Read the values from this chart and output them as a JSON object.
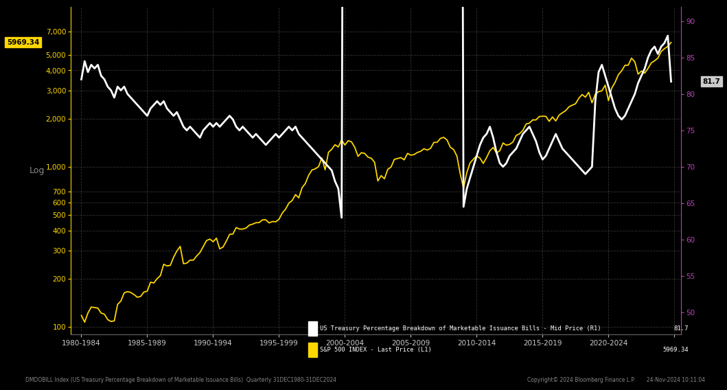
{
  "background_color": "#000000",
  "plot_bg_color": "#000000",
  "grid_color": "#555555",
  "left_axis_color": "#FFD700",
  "right_axis_color": "#BB44BB",
  "white_line_color": "#FFFFFF",
  "gold_line_color": "#FFD700",
  "left_yticks": [
    100,
    200,
    300,
    400,
    500,
    600,
    700,
    1000,
    2000,
    3000,
    4000,
    5000,
    7000
  ],
  "right_yticks": [
    50,
    55,
    60,
    65,
    70,
    75,
    80,
    85,
    90
  ],
  "left_ylim": [
    90,
    10000
  ],
  "right_ylim": [
    47,
    92
  ],
  "legend_label_white": "US Treasury Percentage Breakdown of Marketable Issuance Bills - Mid Price (R1)",
  "legend_label_gold": "S&P 500 INDEX - Last Price (L1)",
  "legend_value_white": "81.7",
  "legend_value_gold": "5969.34",
  "last_value_label_white": "81.7",
  "last_value_label_gold": "5969.34",
  "footer_left": "DMDOBILL Index (US Treasury Percentage Breakdown of Marketable Issuance Bills)  Quarterly 31DEC1980-31DEC2024",
  "footer_right": "Copyright© 2024 Bloomberg Finance L.P.       24-Nov-2024 10:11:04",
  "ylabel_left": "Log",
  "sp500_data": [
    [
      1980.0,
      118
    ],
    [
      1980.25,
      107
    ],
    [
      1980.5,
      122
    ],
    [
      1980.75,
      133
    ],
    [
      1981.0,
      132
    ],
    [
      1981.25,
      131
    ],
    [
      1981.5,
      122
    ],
    [
      1981.75,
      120
    ],
    [
      1982.0,
      111
    ],
    [
      1982.25,
      108
    ],
    [
      1982.5,
      109
    ],
    [
      1982.75,
      138
    ],
    [
      1983.0,
      145
    ],
    [
      1983.25,
      163
    ],
    [
      1983.5,
      166
    ],
    [
      1983.75,
      164
    ],
    [
      1984.0,
      159
    ],
    [
      1984.25,
      153
    ],
    [
      1984.5,
      155
    ],
    [
      1984.75,
      165
    ],
    [
      1985.0,
      167
    ],
    [
      1985.25,
      190
    ],
    [
      1985.5,
      188
    ],
    [
      1985.75,
      200
    ],
    [
      1986.0,
      209
    ],
    [
      1986.25,
      246
    ],
    [
      1986.5,
      240
    ],
    [
      1986.75,
      242
    ],
    [
      1987.0,
      272
    ],
    [
      1987.25,
      298
    ],
    [
      1987.5,
      318
    ],
    [
      1987.75,
      248
    ],
    [
      1988.0,
      250
    ],
    [
      1988.25,
      261
    ],
    [
      1988.5,
      261
    ],
    [
      1988.75,
      277
    ],
    [
      1989.0,
      291
    ],
    [
      1989.25,
      317
    ],
    [
      1989.5,
      346
    ],
    [
      1989.75,
      353
    ],
    [
      1990.0,
      340
    ],
    [
      1990.25,
      358
    ],
    [
      1990.5,
      307
    ],
    [
      1990.75,
      315
    ],
    [
      1991.0,
      343
    ],
    [
      1991.25,
      378
    ],
    [
      1991.5,
      380
    ],
    [
      1991.75,
      417
    ],
    [
      1992.0,
      408
    ],
    [
      1992.25,
      408
    ],
    [
      1992.5,
      414
    ],
    [
      1992.75,
      432
    ],
    [
      1993.0,
      438
    ],
    [
      1993.25,
      447
    ],
    [
      1993.5,
      448
    ],
    [
      1993.75,
      466
    ],
    [
      1994.0,
      466
    ],
    [
      1994.25,
      446
    ],
    [
      1994.5,
      455
    ],
    [
      1994.75,
      453
    ],
    [
      1995.0,
      470
    ],
    [
      1995.25,
      514
    ],
    [
      1995.5,
      544
    ],
    [
      1995.75,
      593
    ],
    [
      1996.0,
      615
    ],
    [
      1996.25,
      670
    ],
    [
      1996.5,
      639
    ],
    [
      1996.75,
      740
    ],
    [
      1997.0,
      786
    ],
    [
      1997.25,
      885
    ],
    [
      1997.5,
      954
    ],
    [
      1997.75,
      970
    ],
    [
      1998.0,
      1001
    ],
    [
      1998.25,
      1133
    ],
    [
      1998.5,
      957
    ],
    [
      1998.75,
      1229
    ],
    [
      1999.0,
      1286
    ],
    [
      1999.25,
      1372
    ],
    [
      1999.5,
      1328
    ],
    [
      1999.75,
      1469
    ],
    [
      2000.0,
      1366
    ],
    [
      2000.25,
      1454
    ],
    [
      2000.5,
      1430
    ],
    [
      2000.75,
      1320
    ],
    [
      2001.0,
      1160
    ],
    [
      2001.25,
      1224
    ],
    [
      2001.5,
      1211
    ],
    [
      2001.75,
      1148
    ],
    [
      2002.0,
      1130
    ],
    [
      2002.25,
      1067
    ],
    [
      2002.5,
      815
    ],
    [
      2002.75,
      880
    ],
    [
      2003.0,
      841
    ],
    [
      2003.25,
      963
    ],
    [
      2003.5,
      995
    ],
    [
      2003.75,
      1112
    ],
    [
      2004.0,
      1126
    ],
    [
      2004.25,
      1140
    ],
    [
      2004.5,
      1104
    ],
    [
      2004.75,
      1211
    ],
    [
      2005.0,
      1181
    ],
    [
      2005.25,
      1191
    ],
    [
      2005.5,
      1228
    ],
    [
      2005.75,
      1248
    ],
    [
      2006.0,
      1294
    ],
    [
      2006.25,
      1270
    ],
    [
      2006.5,
      1303
    ],
    [
      2006.75,
      1418
    ],
    [
      2007.0,
      1421
    ],
    [
      2007.25,
      1503
    ],
    [
      2007.5,
      1526
    ],
    [
      2007.75,
      1468
    ],
    [
      2008.0,
      1323
    ],
    [
      2008.25,
      1280
    ],
    [
      2008.5,
      1166
    ],
    [
      2008.75,
      903
    ],
    [
      2009.0,
      735
    ],
    [
      2009.25,
      919
    ],
    [
      2009.5,
      1057
    ],
    [
      2009.75,
      1115
    ],
    [
      2010.0,
      1169
    ],
    [
      2010.25,
      1131
    ],
    [
      2010.5,
      1049
    ],
    [
      2010.75,
      1141
    ],
    [
      2011.0,
      1257
    ],
    [
      2011.25,
      1320
    ],
    [
      2011.5,
      1218
    ],
    [
      2011.75,
      1258
    ],
    [
      2012.0,
      1408
    ],
    [
      2012.25,
      1362
    ],
    [
      2012.5,
      1379
    ],
    [
      2012.75,
      1426
    ],
    [
      2013.0,
      1569
    ],
    [
      2013.25,
      1606
    ],
    [
      2013.5,
      1685
    ],
    [
      2013.75,
      1848
    ],
    [
      2014.0,
      1872
    ],
    [
      2014.25,
      1960
    ],
    [
      2014.5,
      1960
    ],
    [
      2014.75,
      2059
    ],
    [
      2015.0,
      2067
    ],
    [
      2015.25,
      2063
    ],
    [
      2015.5,
      1920
    ],
    [
      2015.75,
      2044
    ],
    [
      2016.0,
      1932
    ],
    [
      2016.25,
      2099
    ],
    [
      2016.5,
      2173
    ],
    [
      2016.75,
      2239
    ],
    [
      2017.0,
      2364
    ],
    [
      2017.25,
      2423
    ],
    [
      2017.5,
      2472
    ],
    [
      2017.75,
      2674
    ],
    [
      2018.0,
      2824
    ],
    [
      2018.25,
      2718
    ],
    [
      2018.5,
      2914
    ],
    [
      2018.75,
      2507
    ],
    [
      2019.0,
      2834
    ],
    [
      2019.25,
      2942
    ],
    [
      2019.5,
      2977
    ],
    [
      2019.75,
      3231
    ],
    [
      2020.0,
      2585
    ],
    [
      2020.25,
      3100
    ],
    [
      2020.5,
      3363
    ],
    [
      2020.75,
      3756
    ],
    [
      2021.0,
      3972
    ],
    [
      2021.25,
      4297
    ],
    [
      2021.5,
      4308
    ],
    [
      2021.75,
      4766
    ],
    [
      2022.0,
      4516
    ],
    [
      2022.25,
      3785
    ],
    [
      2022.5,
      3955
    ],
    [
      2022.75,
      3840
    ],
    [
      2023.0,
      4109
    ],
    [
      2023.25,
      4450
    ],
    [
      2023.5,
      4588
    ],
    [
      2023.75,
      4769
    ],
    [
      2024.0,
      5243
    ],
    [
      2024.25,
      5461
    ],
    [
      2024.5,
      5636
    ],
    [
      2024.75,
      5970
    ]
  ],
  "bills_data": [
    [
      1980.0,
      82.0
    ],
    [
      1980.25,
      84.5
    ],
    [
      1980.5,
      83.0
    ],
    [
      1980.75,
      84.0
    ],
    [
      1981.0,
      83.5
    ],
    [
      1981.25,
      84.0
    ],
    [
      1981.5,
      82.5
    ],
    [
      1981.75,
      82.0
    ],
    [
      1982.0,
      81.0
    ],
    [
      1982.25,
      80.5
    ],
    [
      1982.5,
      79.5
    ],
    [
      1982.75,
      81.0
    ],
    [
      1983.0,
      80.5
    ],
    [
      1983.25,
      81.0
    ],
    [
      1983.5,
      80.0
    ],
    [
      1983.75,
      79.5
    ],
    [
      1984.0,
      79.0
    ],
    [
      1984.25,
      78.5
    ],
    [
      1984.5,
      78.0
    ],
    [
      1984.75,
      77.5
    ],
    [
      1985.0,
      77.0
    ],
    [
      1985.25,
      78.0
    ],
    [
      1985.5,
      78.5
    ],
    [
      1985.75,
      79.0
    ],
    [
      1986.0,
      78.5
    ],
    [
      1986.25,
      79.0
    ],
    [
      1986.5,
      78.0
    ],
    [
      1986.75,
      77.5
    ],
    [
      1987.0,
      77.0
    ],
    [
      1987.25,
      77.5
    ],
    [
      1987.5,
      76.5
    ],
    [
      1987.75,
      75.5
    ],
    [
      1988.0,
      75.0
    ],
    [
      1988.25,
      75.5
    ],
    [
      1988.5,
      75.0
    ],
    [
      1988.75,
      74.5
    ],
    [
      1989.0,
      74.0
    ],
    [
      1989.25,
      75.0
    ],
    [
      1989.5,
      75.5
    ],
    [
      1989.75,
      76.0
    ],
    [
      1990.0,
      75.5
    ],
    [
      1990.25,
      76.0
    ],
    [
      1990.5,
      75.5
    ],
    [
      1990.75,
      76.0
    ],
    [
      1991.0,
      76.5
    ],
    [
      1991.25,
      77.0
    ],
    [
      1991.5,
      76.5
    ],
    [
      1991.75,
      75.5
    ],
    [
      1992.0,
      75.0
    ],
    [
      1992.25,
      75.5
    ],
    [
      1992.5,
      75.0
    ],
    [
      1992.75,
      74.5
    ],
    [
      1993.0,
      74.0
    ],
    [
      1993.25,
      74.5
    ],
    [
      1993.5,
      74.0
    ],
    [
      1993.75,
      73.5
    ],
    [
      1994.0,
      73.0
    ],
    [
      1994.25,
      73.5
    ],
    [
      1994.5,
      74.0
    ],
    [
      1994.75,
      74.5
    ],
    [
      1995.0,
      74.0
    ],
    [
      1995.25,
      74.5
    ],
    [
      1995.5,
      75.0
    ],
    [
      1995.75,
      75.5
    ],
    [
      1996.0,
      75.0
    ],
    [
      1996.25,
      75.5
    ],
    [
      1996.5,
      74.5
    ],
    [
      1996.75,
      74.0
    ],
    [
      1997.0,
      73.5
    ],
    [
      1997.25,
      73.0
    ],
    [
      1997.5,
      72.5
    ],
    [
      1997.75,
      72.0
    ],
    [
      1998.0,
      71.5
    ],
    [
      1998.25,
      71.0
    ],
    [
      1998.5,
      70.5
    ],
    [
      1998.75,
      70.0
    ],
    [
      1999.0,
      69.5
    ],
    [
      1999.25,
      68.0
    ],
    [
      1999.5,
      67.0
    ],
    [
      1999.75,
      63.0
    ],
    [
      2000.0,
      200.0
    ],
    [
      2000.25,
      200.0
    ],
    [
      2000.5,
      200.0
    ],
    [
      2000.75,
      200.0
    ],
    [
      2001.0,
      200.0
    ],
    [
      2001.25,
      200.0
    ],
    [
      2001.5,
      200.0
    ],
    [
      2001.75,
      200.0
    ],
    [
      2002.0,
      200.0
    ],
    [
      2002.25,
      200.0
    ],
    [
      2002.5,
      200.0
    ],
    [
      2002.75,
      200.0
    ],
    [
      2003.0,
      200.0
    ],
    [
      2003.25,
      200.0
    ],
    [
      2003.5,
      200.0
    ],
    [
      2003.75,
      200.0
    ],
    [
      2004.0,
      200.0
    ],
    [
      2004.25,
      200.0
    ],
    [
      2004.5,
      200.0
    ],
    [
      2004.75,
      200.0
    ],
    [
      2005.0,
      200.0
    ],
    [
      2005.25,
      200.0
    ],
    [
      2005.5,
      200.0
    ],
    [
      2005.75,
      200.0
    ],
    [
      2006.0,
      200.0
    ],
    [
      2006.25,
      200.0
    ],
    [
      2006.5,
      200.0
    ],
    [
      2006.75,
      200.0
    ],
    [
      2007.0,
      200.0
    ],
    [
      2007.25,
      200.0
    ],
    [
      2007.5,
      200.0
    ],
    [
      2007.75,
      200.0
    ],
    [
      2008.0,
      200.0
    ],
    [
      2008.25,
      200.0
    ],
    [
      2008.5,
      200.0
    ],
    [
      2008.75,
      200.0
    ],
    [
      2009.0,
      64.5
    ],
    [
      2009.25,
      67.0
    ],
    [
      2009.5,
      68.5
    ],
    [
      2009.75,
      70.0
    ],
    [
      2010.0,
      71.5
    ],
    [
      2010.25,
      73.0
    ],
    [
      2010.5,
      74.0
    ],
    [
      2010.75,
      74.5
    ],
    [
      2011.0,
      75.5
    ],
    [
      2011.25,
      74.0
    ],
    [
      2011.5,
      72.0
    ],
    [
      2011.75,
      70.5
    ],
    [
      2012.0,
      70.0
    ],
    [
      2012.25,
      70.5
    ],
    [
      2012.5,
      71.5
    ],
    [
      2012.75,
      72.0
    ],
    [
      2013.0,
      72.5
    ],
    [
      2013.25,
      73.5
    ],
    [
      2013.5,
      74.5
    ],
    [
      2013.75,
      75.0
    ],
    [
      2014.0,
      75.5
    ],
    [
      2014.25,
      74.5
    ],
    [
      2014.5,
      73.5
    ],
    [
      2014.75,
      72.0
    ],
    [
      2015.0,
      71.0
    ],
    [
      2015.25,
      71.5
    ],
    [
      2015.5,
      72.5
    ],
    [
      2015.75,
      73.5
    ],
    [
      2016.0,
      74.5
    ],
    [
      2016.25,
      73.5
    ],
    [
      2016.5,
      72.5
    ],
    [
      2016.75,
      72.0
    ],
    [
      2017.0,
      71.5
    ],
    [
      2017.25,
      71.0
    ],
    [
      2017.5,
      70.5
    ],
    [
      2017.75,
      70.0
    ],
    [
      2018.0,
      69.5
    ],
    [
      2018.25,
      69.0
    ],
    [
      2018.5,
      69.5
    ],
    [
      2018.75,
      70.0
    ],
    [
      2019.0,
      79.0
    ],
    [
      2019.25,
      83.0
    ],
    [
      2019.5,
      84.0
    ],
    [
      2019.75,
      82.5
    ],
    [
      2020.0,
      81.0
    ],
    [
      2020.25,
      79.5
    ],
    [
      2020.5,
      78.0
    ],
    [
      2020.75,
      77.0
    ],
    [
      2021.0,
      76.5
    ],
    [
      2021.25,
      77.0
    ],
    [
      2021.5,
      78.0
    ],
    [
      2021.75,
      79.0
    ],
    [
      2022.0,
      80.0
    ],
    [
      2022.25,
      81.5
    ],
    [
      2022.5,
      82.5
    ],
    [
      2022.75,
      83.5
    ],
    [
      2023.0,
      85.0
    ],
    [
      2023.25,
      86.0
    ],
    [
      2023.5,
      86.5
    ],
    [
      2023.75,
      85.5
    ],
    [
      2024.0,
      86.5
    ],
    [
      2024.25,
      87.0
    ],
    [
      2024.5,
      88.0
    ],
    [
      2024.75,
      81.7
    ]
  ]
}
